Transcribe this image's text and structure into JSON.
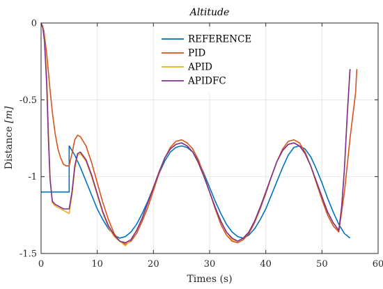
{
  "chart_data": {
    "type": "line",
    "title": "Altitude",
    "xlabel": "Times (s)",
    "ylabel": "Distance [m]",
    "ylabel_main": "Distance ",
    "ylabel_unit": "[m]",
    "xlim": [
      0,
      60
    ],
    "ylim": [
      -1.5,
      0
    ],
    "x_ticks": [
      0,
      10,
      20,
      30,
      40,
      50,
      60
    ],
    "y_ticks": [
      -1.5,
      -1,
      -0.5,
      0
    ],
    "x_tick_labels": [
      "0",
      "10",
      "20",
      "30",
      "40",
      "50",
      "60"
    ],
    "y_tick_labels": [
      "-1.5",
      "-1",
      "-0.5",
      "0"
    ],
    "grid": true,
    "legend_position": "top-center",
    "series": [
      {
        "name": "REFERENCE",
        "color": "#0072BD",
        "points": [
          [
            0,
            -1.1
          ],
          [
            5,
            -1.1
          ],
          [
            5,
            -0.8
          ],
          [
            6,
            -0.86
          ],
          [
            7,
            -0.94
          ],
          [
            8,
            -1.03
          ],
          [
            9,
            -1.12
          ],
          [
            10,
            -1.21
          ],
          [
            11,
            -1.28
          ],
          [
            12,
            -1.34
          ],
          [
            13,
            -1.38
          ],
          [
            14,
            -1.4
          ],
          [
            15,
            -1.39
          ],
          [
            16,
            -1.36
          ],
          [
            17,
            -1.31
          ],
          [
            18,
            -1.24
          ],
          [
            19,
            -1.16
          ],
          [
            20,
            -1.07
          ],
          [
            21,
            -0.98
          ],
          [
            22,
            -0.9
          ],
          [
            23,
            -0.84
          ],
          [
            24,
            -0.81
          ],
          [
            25,
            -0.8
          ],
          [
            26,
            -0.81
          ],
          [
            27,
            -0.84
          ],
          [
            28,
            -0.9
          ],
          [
            29,
            -0.98
          ],
          [
            30,
            -1.07
          ],
          [
            31,
            -1.16
          ],
          [
            32,
            -1.24
          ],
          [
            33,
            -1.31
          ],
          [
            34,
            -1.36
          ],
          [
            35,
            -1.39
          ],
          [
            36,
            -1.4
          ],
          [
            37,
            -1.38
          ],
          [
            38,
            -1.34
          ],
          [
            39,
            -1.28
          ],
          [
            40,
            -1.21
          ],
          [
            41,
            -1.12
          ],
          [
            42,
            -1.03
          ],
          [
            43,
            -0.94
          ],
          [
            44,
            -0.86
          ],
          [
            45,
            -0.81
          ],
          [
            46,
            -0.8
          ],
          [
            47,
            -0.82
          ],
          [
            48,
            -0.87
          ],
          [
            49,
            -0.95
          ],
          [
            50,
            -1.04
          ],
          [
            51,
            -1.14
          ],
          [
            52,
            -1.23
          ],
          [
            53,
            -1.31
          ],
          [
            54,
            -1.37
          ],
          [
            55,
            -1.4
          ]
        ]
      },
      {
        "name": "PID",
        "color": "#D95319",
        "points": [
          [
            0,
            0
          ],
          [
            0.5,
            -0.05
          ],
          [
            1,
            -0.2
          ],
          [
            1.5,
            -0.4
          ],
          [
            2,
            -0.58
          ],
          [
            2.5,
            -0.72
          ],
          [
            3,
            -0.82
          ],
          [
            3.5,
            -0.88
          ],
          [
            4,
            -0.92
          ],
          [
            4.5,
            -0.93
          ],
          [
            5,
            -0.93
          ],
          [
            5.5,
            -0.85
          ],
          [
            6,
            -0.76
          ],
          [
            6.5,
            -0.73
          ],
          [
            7,
            -0.74
          ],
          [
            8,
            -0.8
          ],
          [
            9,
            -0.91
          ],
          [
            10,
            -1.04
          ],
          [
            11,
            -1.17
          ],
          [
            12,
            -1.28
          ],
          [
            13,
            -1.37
          ],
          [
            14,
            -1.42
          ],
          [
            15,
            -1.44
          ],
          [
            16,
            -1.42
          ],
          [
            17,
            -1.37
          ],
          [
            18,
            -1.29
          ],
          [
            19,
            -1.2
          ],
          [
            20,
            -1.09
          ],
          [
            21,
            -0.98
          ],
          [
            22,
            -0.88
          ],
          [
            23,
            -0.81
          ],
          [
            24,
            -0.77
          ],
          [
            25,
            -0.76
          ],
          [
            26,
            -0.78
          ],
          [
            27,
            -0.82
          ],
          [
            28,
            -0.89
          ],
          [
            29,
            -0.99
          ],
          [
            30,
            -1.1
          ],
          [
            31,
            -1.21
          ],
          [
            32,
            -1.31
          ],
          [
            33,
            -1.38
          ],
          [
            34,
            -1.42
          ],
          [
            35,
            -1.43
          ],
          [
            36,
            -1.41
          ],
          [
            37,
            -1.37
          ],
          [
            38,
            -1.3
          ],
          [
            39,
            -1.21
          ],
          [
            40,
            -1.11
          ],
          [
            41,
            -1.0
          ],
          [
            42,
            -0.9
          ],
          [
            43,
            -0.82
          ],
          [
            44,
            -0.77
          ],
          [
            45,
            -0.76
          ],
          [
            46,
            -0.78
          ],
          [
            47,
            -0.84
          ],
          [
            48,
            -0.93
          ],
          [
            49,
            -1.04
          ],
          [
            50,
            -1.15
          ],
          [
            51,
            -1.25
          ],
          [
            52,
            -1.32
          ],
          [
            53,
            -1.36
          ],
          [
            54,
            -1.1
          ],
          [
            55,
            -0.75
          ],
          [
            56,
            -0.45
          ],
          [
            56.2,
            -0.3
          ]
        ]
      },
      {
        "name": "APID",
        "color": "#EDB120",
        "points": [
          [
            0,
            0
          ],
          [
            0.3,
            -0.02
          ],
          [
            0.6,
            -0.1
          ],
          [
            1,
            -0.35
          ],
          [
            1.3,
            -0.7
          ],
          [
            1.6,
            -1.0
          ],
          [
            2,
            -1.17
          ],
          [
            2.5,
            -1.19
          ],
          [
            3,
            -1.2
          ],
          [
            4,
            -1.22
          ],
          [
            5,
            -1.24
          ],
          [
            5.5,
            -1.12
          ],
          [
            6,
            -0.95
          ],
          [
            6.5,
            -0.86
          ],
          [
            7,
            -0.85
          ],
          [
            8,
            -0.9
          ],
          [
            9,
            -1.0
          ],
          [
            10,
            -1.12
          ],
          [
            11,
            -1.24
          ],
          [
            12,
            -1.33
          ],
          [
            13,
            -1.39
          ],
          [
            14,
            -1.42
          ],
          [
            15,
            -1.45
          ],
          [
            16,
            -1.41
          ],
          [
            17,
            -1.35
          ],
          [
            18,
            -1.27
          ],
          [
            19,
            -1.17
          ],
          [
            20,
            -1.07
          ],
          [
            21,
            -0.97
          ],
          [
            22,
            -0.88
          ],
          [
            23,
            -0.82
          ],
          [
            24,
            -0.79
          ],
          [
            25,
            -0.78
          ],
          [
            26,
            -0.8
          ],
          [
            27,
            -0.84
          ],
          [
            28,
            -0.91
          ],
          [
            29,
            -1.0
          ],
          [
            30,
            -1.1
          ],
          [
            31,
            -1.2
          ],
          [
            32,
            -1.29
          ],
          [
            33,
            -1.36
          ],
          [
            34,
            -1.41
          ],
          [
            35,
            -1.42
          ],
          [
            36,
            -1.4
          ],
          [
            37,
            -1.36
          ],
          [
            38,
            -1.29
          ],
          [
            39,
            -1.2
          ],
          [
            40,
            -1.1
          ],
          [
            41,
            -1.0
          ],
          [
            42,
            -0.9
          ],
          [
            43,
            -0.83
          ],
          [
            44,
            -0.79
          ],
          [
            45,
            -0.78
          ],
          [
            46,
            -0.8
          ],
          [
            47,
            -0.85
          ],
          [
            48,
            -0.93
          ],
          [
            49,
            -1.03
          ],
          [
            50,
            -1.13
          ],
          [
            51,
            -1.23
          ],
          [
            52,
            -1.3
          ],
          [
            53,
            -1.35
          ],
          [
            53.5,
            -1.2
          ],
          [
            54,
            -0.95
          ],
          [
            54.5,
            -0.6
          ],
          [
            55,
            -0.3
          ]
        ]
      },
      {
        "name": "APIDFC",
        "color": "#7E2F8E",
        "points": [
          [
            0,
            0
          ],
          [
            0.3,
            -0.03
          ],
          [
            0.6,
            -0.12
          ],
          [
            1,
            -0.4
          ],
          [
            1.3,
            -0.75
          ],
          [
            1.6,
            -1.02
          ],
          [
            2,
            -1.16
          ],
          [
            2.5,
            -1.18
          ],
          [
            3,
            -1.19
          ],
          [
            4,
            -1.21
          ],
          [
            5,
            -1.21
          ],
          [
            5.5,
            -1.1
          ],
          [
            6,
            -0.93
          ],
          [
            6.5,
            -0.85
          ],
          [
            7,
            -0.84
          ],
          [
            8,
            -0.89
          ],
          [
            9,
            -0.99
          ],
          [
            10,
            -1.11
          ],
          [
            11,
            -1.23
          ],
          [
            12,
            -1.32
          ],
          [
            13,
            -1.38
          ],
          [
            14,
            -1.42
          ],
          [
            15,
            -1.43
          ],
          [
            16,
            -1.41
          ],
          [
            17,
            -1.35
          ],
          [
            18,
            -1.27
          ],
          [
            19,
            -1.17
          ],
          [
            20,
            -1.07
          ],
          [
            21,
            -0.97
          ],
          [
            22,
            -0.88
          ],
          [
            23,
            -0.82
          ],
          [
            24,
            -0.79
          ],
          [
            25,
            -0.78
          ],
          [
            26,
            -0.8
          ],
          [
            27,
            -0.84
          ],
          [
            28,
            -0.91
          ],
          [
            29,
            -1.0
          ],
          [
            30,
            -1.1
          ],
          [
            31,
            -1.2
          ],
          [
            32,
            -1.29
          ],
          [
            33,
            -1.36
          ],
          [
            34,
            -1.4
          ],
          [
            35,
            -1.42
          ],
          [
            36,
            -1.4
          ],
          [
            37,
            -1.36
          ],
          [
            38,
            -1.29
          ],
          [
            39,
            -1.2
          ],
          [
            40,
            -1.1
          ],
          [
            41,
            -1.0
          ],
          [
            42,
            -0.9
          ],
          [
            43,
            -0.83
          ],
          [
            44,
            -0.79
          ],
          [
            45,
            -0.78
          ],
          [
            46,
            -0.8
          ],
          [
            47,
            -0.85
          ],
          [
            48,
            -0.93
          ],
          [
            49,
            -1.03
          ],
          [
            50,
            -1.13
          ],
          [
            51,
            -1.23
          ],
          [
            52,
            -1.3
          ],
          [
            53,
            -1.35
          ],
          [
            53.5,
            -1.2
          ],
          [
            54,
            -0.95
          ],
          [
            54.5,
            -0.6
          ],
          [
            55,
            -0.3
          ]
        ]
      }
    ]
  }
}
